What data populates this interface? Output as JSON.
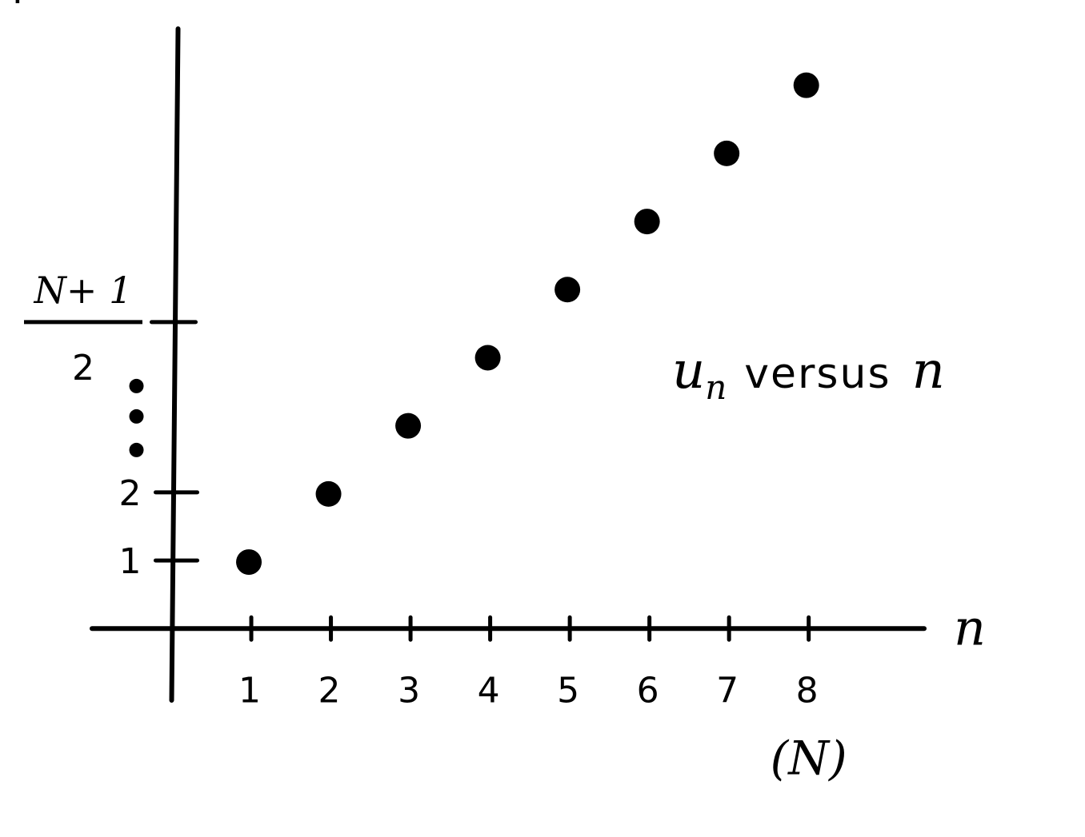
{
  "chart_data": {
    "type": "scatter",
    "title": {
      "var": "u",
      "sub": "n",
      "middle": "versus",
      "end": "n"
    },
    "xlabel": "n",
    "ylabel": "",
    "x": [
      1,
      2,
      3,
      4,
      5,
      6,
      7,
      8
    ],
    "y": [
      1,
      2,
      3,
      4,
      5,
      6,
      7,
      8
    ],
    "xlim": [
      -1,
      9.4
    ],
    "ylim": [
      -1.1,
      8.9
    ],
    "x_ticks": [
      "1",
      "2",
      "3",
      "4",
      "5",
      "6",
      "7",
      "8"
    ],
    "x_tick_extra": "(N)",
    "y_ticks": [
      {
        "value": 1,
        "label": "1"
      },
      {
        "value": 2,
        "label": "2"
      }
    ],
    "y_fraction_tick": {
      "value": 4.5,
      "numerator": "N+ 1",
      "denominator": "2"
    },
    "y_ellipsis": "⋮",
    "grid": false,
    "legend": "none",
    "point_color": "#000000"
  }
}
